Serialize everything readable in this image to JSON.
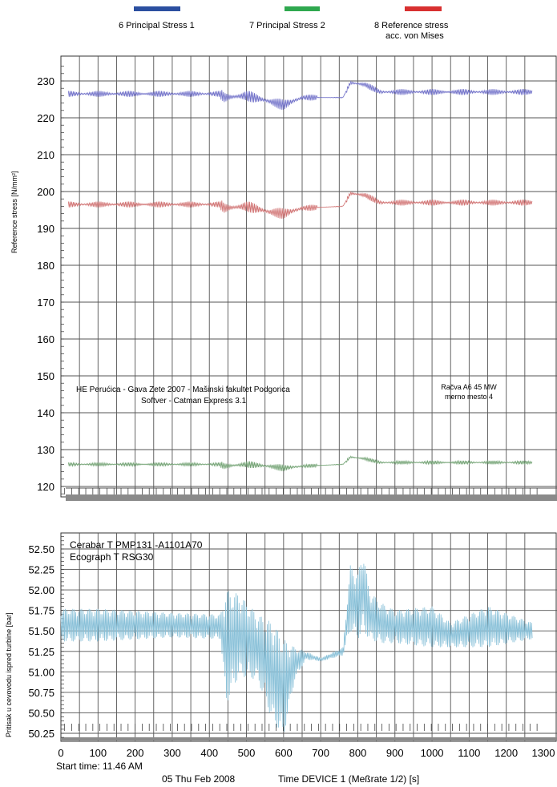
{
  "legend": [
    {
      "label": "6  Principal Stress 1",
      "color": "#2b4fa0"
    },
    {
      "label": "7  Principal Stress 2",
      "color": "#2fa84f"
    },
    {
      "label": "8  Reference stress",
      "label2": "acc. von Mises",
      "color": "#d83030"
    }
  ],
  "chart_data": [
    {
      "type": "line",
      "ylabel": "Reference stress [N/mm²]",
      "ylim": [
        118,
        234
      ],
      "yticks": [
        120,
        130,
        140,
        150,
        160,
        170,
        180,
        190,
        200,
        210,
        220,
        230
      ],
      "xlim": [
        0,
        1300
      ],
      "grid": true,
      "annotations": [
        "HE Perućica - Gava Zete 2007 - Mašinski fakultet Podgorica",
        "Softver - Catman Express 3.1",
        "Račva A6 45 MW",
        "merno mesto 4"
      ],
      "series": [
        {
          "name": "6  Principal Stress 1",
          "color": "#6f6fc8",
          "baseline": 226.5,
          "amplitude": 0.8,
          "x": [
            20,
            430,
            440,
            500,
            560,
            600,
            650,
            760,
            780,
            820,
            860,
            1270
          ],
          "y": [
            226.5,
            226.5,
            225.5,
            226.0,
            224.5,
            223.5,
            225.5,
            225.5,
            229.5,
            229.0,
            227.0,
            227.0
          ]
        },
        {
          "name": "8  Reference stress acc. von Mises",
          "color": "#d07070",
          "baseline": 196.5,
          "amplitude": 0.8,
          "x": [
            20,
            430,
            440,
            500,
            560,
            600,
            650,
            760,
            780,
            820,
            860,
            1270
          ],
          "y": [
            196.5,
            196.5,
            195.5,
            196.0,
            194.5,
            194.0,
            195.5,
            196.0,
            199.5,
            199.0,
            197.0,
            197.0
          ]
        },
        {
          "name": "7  Principal Stress 2",
          "color": "#6fa070",
          "baseline": 126.0,
          "amplitude": 0.5,
          "x": [
            20,
            430,
            440,
            500,
            560,
            600,
            650,
            760,
            780,
            820,
            860,
            1270
          ],
          "y": [
            126.0,
            126.0,
            125.5,
            126.0,
            125.5,
            125.0,
            125.5,
            126.0,
            128.0,
            127.5,
            126.5,
            126.5
          ]
        }
      ]
    },
    {
      "type": "line",
      "ylabel": "Pritisak u cevovodu ispred turbine [bar]",
      "ylim": [
        50.22,
        52.65
      ],
      "yticks": [
        50.25,
        50.5,
        50.75,
        51.0,
        51.25,
        51.5,
        51.75,
        52.0,
        52.25,
        52.5
      ],
      "xlim": [
        0,
        1300
      ],
      "xticks": [
        0,
        100,
        200,
        300,
        400,
        500,
        600,
        700,
        800,
        900,
        1000,
        1100,
        1200,
        1300
      ],
      "grid": true,
      "annotations": [
        "Cerabar T PMP131 -A1101A70",
        "Ecograph T RSG30"
      ],
      "series": [
        {
          "color": "#88c0d8",
          "x": [
            0,
            100,
            300,
            430,
            445,
            480,
            530,
            570,
            600,
            630,
            660,
            700,
            760,
            780,
            800,
            815,
            830,
            860,
            900,
            1000,
            1050,
            1150,
            1270
          ],
          "y": [
            51.57,
            51.57,
            51.57,
            51.55,
            51.3,
            51.45,
            51.3,
            51.0,
            50.8,
            51.1,
            51.2,
            51.15,
            51.25,
            51.9,
            51.8,
            52.0,
            51.7,
            51.6,
            51.55,
            51.55,
            51.45,
            51.55,
            51.5
          ],
          "amp": [
            0.2,
            0.2,
            0.15,
            0.15,
            0.7,
            0.5,
            0.4,
            0.6,
            0.6,
            0.2,
            0.05,
            0.02,
            0.05,
            0.4,
            0.4,
            0.5,
            0.3,
            0.25,
            0.2,
            0.25,
            0.15,
            0.25,
            0.1
          ]
        }
      ]
    }
  ],
  "footer": {
    "start_time": "Start time: 11.46 AM",
    "date": "05 Thu   Feb 2008",
    "xlabel": "Time DEVICE  1 (Meßrate 1/2) [s]"
  }
}
